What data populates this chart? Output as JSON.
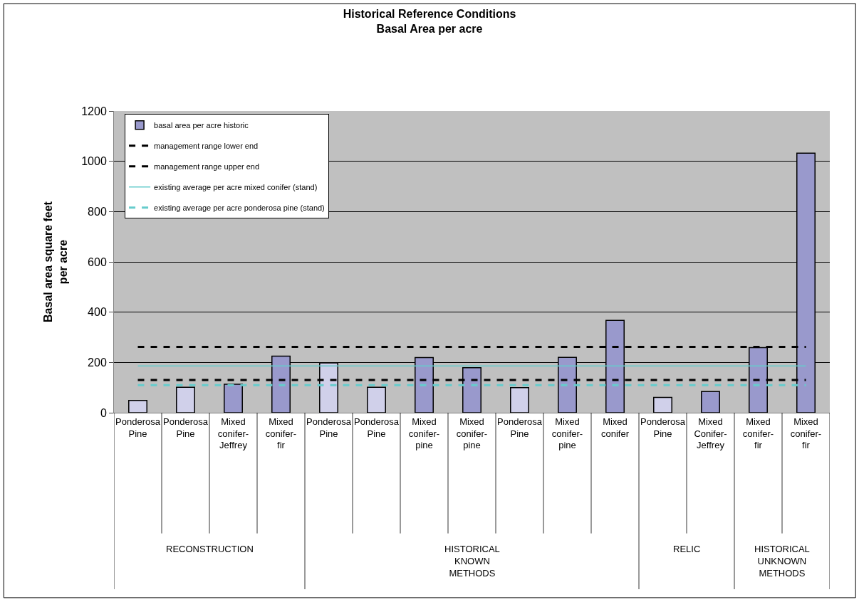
{
  "chart_data": {
    "type": "bar",
    "title": "Historical Reference Conditions\nBasal Area per acre",
    "ylabel": "Basal area square feet per acre",
    "categories": [
      "Ponderosa Pine",
      "Ponderosa Pine",
      "Mixed conifer-Jeffrey",
      "Mixed conifer-fir",
      "Ponderosa Pine",
      "Ponderosa Pine",
      "Mixed conifer-pine",
      "Mixed conifer-pine",
      "Ponderosa Pine",
      "Mixed conifer-pine",
      "Mixed conifer",
      "Ponderosa Pine",
      "Mixed Conifer-Jeffrey",
      "Mixed conifer-fir",
      "Mixed conifer-fir"
    ],
    "series": [
      {
        "name": "basal area per acre historic",
        "color": "#9999cc",
        "colors": [
          "#d0d0ea",
          "#d0d0ea",
          "#9999cc",
          "#9999cc",
          "#d0d0ea",
          "#d0d0ea",
          "#9999cc",
          "#9999cc",
          "#d0d0ea",
          "#9999cc",
          "#9999cc",
          "#d0d0ea",
          "#9999cc",
          "#9999cc",
          "#9999cc"
        ],
        "values": [
          49,
          101,
          113,
          225,
          198,
          101,
          219,
          179,
          100,
          220,
          367,
          61,
          84,
          259,
          1032
        ]
      },
      {
        "name": "management range lower end",
        "type": "line",
        "color": "#000000",
        "line_style": "dashed",
        "values": [
          130,
          130,
          130,
          130,
          130,
          130,
          130,
          130,
          130,
          130,
          130,
          130,
          130,
          130,
          130
        ]
      },
      {
        "name": "management range upper end",
        "type": "line",
        "color": "#000000",
        "line_style": "dashed",
        "values": [
          262,
          262,
          262,
          262,
          262,
          262,
          262,
          262,
          262,
          262,
          262,
          262,
          262,
          262,
          262
        ]
      },
      {
        "name": "existing average per acre mixed conifer (stand)",
        "type": "line",
        "color": "#66cccc",
        "line_style": "solid",
        "values": [
          186,
          186,
          186,
          186,
          186,
          186,
          186,
          186,
          186,
          186,
          186,
          186,
          186,
          186,
          186
        ]
      },
      {
        "name": "existing average per acre ponderosa pine (stand)",
        "type": "line",
        "color": "#66cccc",
        "line_style": "dashed",
        "values": [
          110,
          110,
          110,
          110,
          110,
          110,
          110,
          110,
          110,
          110,
          110,
          110,
          110,
          110,
          110
        ]
      }
    ],
    "annotations": [
      "RECONSTRUCTION",
      "HISTORICAL KNOWN METHODS",
      "RELIC",
      "HISTORICAL UNKNOWN METHODS"
    ],
    "ylim": [
      0,
      1200
    ],
    "yticks": [
      0,
      200,
      400,
      600,
      800,
      1000,
      1200
    ],
    "grid": "y",
    "legend": "top left"
  }
}
